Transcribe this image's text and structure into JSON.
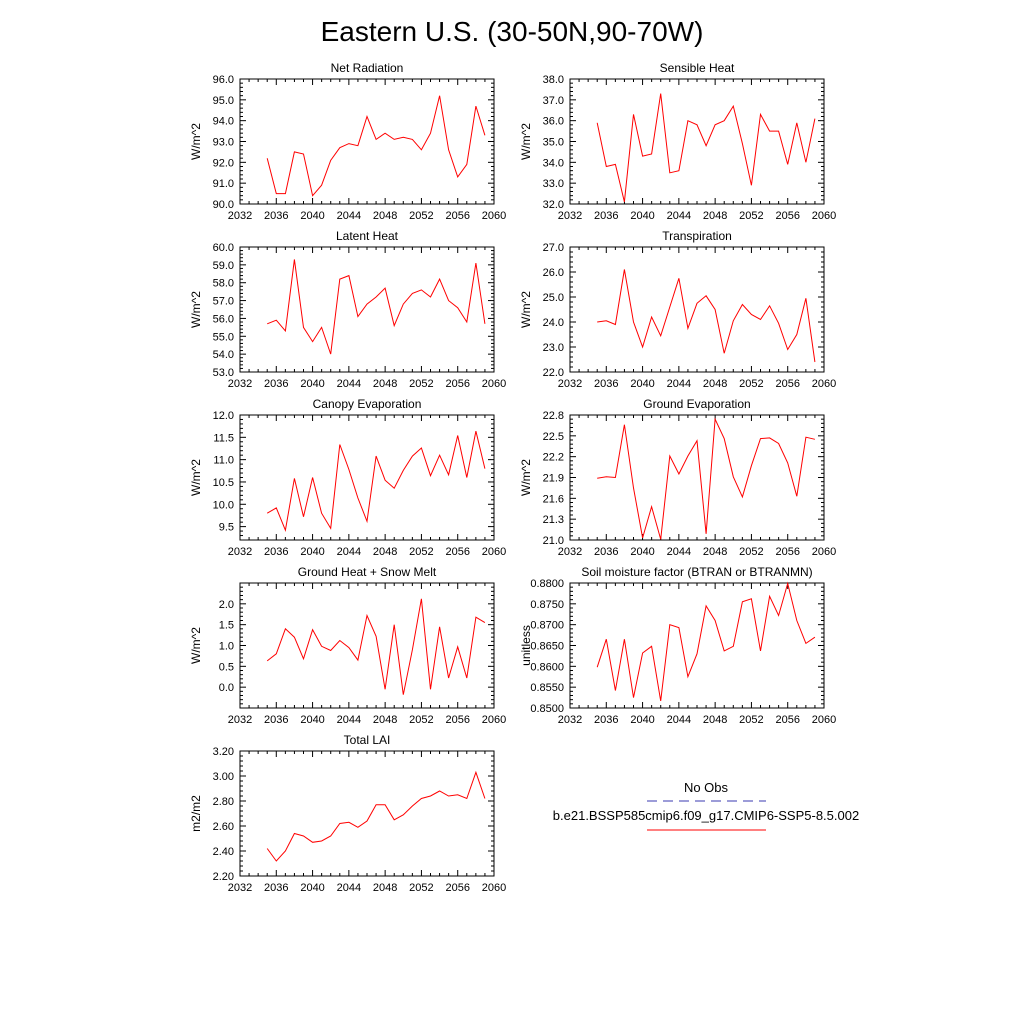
{
  "figure": {
    "title": "Eastern U.S. (30-50N,90-70W)"
  },
  "legend": {
    "obs_label": "No Obs",
    "obs_color": "#3a3ab0",
    "case_label": "b.e21.BSSP585cmip6.f09_g17.CMIP6-SSP5-8.5.002",
    "case_color": "#ff0000"
  },
  "chart_data": [
    {
      "type": "line",
      "title": "Net Radiation",
      "ylabel": "W/m^2",
      "xlim": [
        2032,
        2060
      ],
      "x_ticks": [
        2032,
        2036,
        2040,
        2044,
        2048,
        2052,
        2056,
        2060
      ],
      "ylim": [
        90.0,
        96.0
      ],
      "y_ticks": [
        "90.0",
        "91.0",
        "92.0",
        "93.0",
        "94.0",
        "95.0",
        "96.0"
      ],
      "series": [
        {
          "color": "#ff0000",
          "x": [
            2035,
            2036,
            2037,
            2038,
            2039,
            2040,
            2041,
            2042,
            2043,
            2044,
            2045,
            2046,
            2047,
            2048,
            2049,
            2050,
            2051,
            2052,
            2053,
            2054,
            2055,
            2056,
            2057,
            2058,
            2059
          ],
          "values": [
            92.2,
            90.5,
            90.5,
            92.5,
            92.4,
            90.4,
            90.9,
            92.1,
            92.7,
            92.9,
            92.8,
            94.2,
            93.1,
            93.4,
            93.1,
            93.2,
            93.1,
            92.6,
            93.4,
            95.2,
            92.6,
            91.3,
            91.9,
            94.7,
            93.3
          ]
        }
      ]
    },
    {
      "type": "line",
      "title": "Sensible Heat",
      "ylabel": "W/m^2",
      "xlim": [
        2032,
        2060
      ],
      "x_ticks": [
        2032,
        2036,
        2040,
        2044,
        2048,
        2052,
        2056,
        2060
      ],
      "ylim": [
        32.0,
        38.0
      ],
      "y_ticks": [
        "32.0",
        "33.0",
        "34.0",
        "35.0",
        "36.0",
        "37.0",
        "38.0"
      ],
      "series": [
        {
          "color": "#ff0000",
          "x": [
            2035,
            2036,
            2037,
            2038,
            2039,
            2040,
            2041,
            2042,
            2043,
            2044,
            2045,
            2046,
            2047,
            2048,
            2049,
            2050,
            2051,
            2052,
            2053,
            2054,
            2055,
            2056,
            2057,
            2058,
            2059
          ],
          "values": [
            35.9,
            33.8,
            33.9,
            32.1,
            36.3,
            34.3,
            34.4,
            37.3,
            33.5,
            33.6,
            36.0,
            35.8,
            34.8,
            35.8,
            36.0,
            36.7,
            34.9,
            32.9,
            36.3,
            35.5,
            35.5,
            33.9,
            35.9,
            34.0,
            36.1
          ]
        }
      ]
    },
    {
      "type": "line",
      "title": "Latent Heat",
      "ylabel": "W/m^2",
      "xlim": [
        2032,
        2060
      ],
      "x_ticks": [
        2032,
        2036,
        2040,
        2044,
        2048,
        2052,
        2056,
        2060
      ],
      "ylim": [
        53.0,
        60.0
      ],
      "y_ticks": [
        "53.0",
        "54.0",
        "55.0",
        "56.0",
        "57.0",
        "58.0",
        "59.0",
        "60.0"
      ],
      "series": [
        {
          "color": "#ff0000",
          "x": [
            2035,
            2036,
            2037,
            2038,
            2039,
            2040,
            2041,
            2042,
            2043,
            2044,
            2045,
            2046,
            2047,
            2048,
            2049,
            2050,
            2051,
            2052,
            2053,
            2054,
            2055,
            2056,
            2057,
            2058,
            2059
          ],
          "values": [
            55.7,
            55.9,
            55.3,
            59.3,
            55.5,
            54.7,
            55.5,
            54.0,
            58.2,
            58.4,
            56.1,
            56.8,
            57.2,
            57.7,
            55.6,
            56.8,
            57.4,
            57.6,
            57.2,
            58.2,
            57.0,
            56.6,
            55.8,
            59.1,
            55.7
          ]
        }
      ]
    },
    {
      "type": "line",
      "title": "Transpiration",
      "ylabel": "W/m^2",
      "xlim": [
        2032,
        2060
      ],
      "x_ticks": [
        2032,
        2036,
        2040,
        2044,
        2048,
        2052,
        2056,
        2060
      ],
      "ylim": [
        22.0,
        27.0
      ],
      "y_ticks": [
        "22.0",
        "23.0",
        "24.0",
        "25.0",
        "26.0",
        "27.0"
      ],
      "series": [
        {
          "color": "#ff0000",
          "x": [
            2035,
            2036,
            2037,
            2038,
            2039,
            2040,
            2041,
            2042,
            2043,
            2044,
            2045,
            2046,
            2047,
            2048,
            2049,
            2050,
            2051,
            2052,
            2053,
            2054,
            2055,
            2056,
            2057,
            2058,
            2059
          ],
          "values": [
            24.0,
            24.05,
            23.9,
            26.1,
            24.0,
            23.0,
            24.2,
            23.45,
            24.6,
            25.75,
            23.75,
            24.75,
            25.05,
            24.5,
            22.75,
            24.05,
            24.7,
            24.3,
            24.1,
            24.65,
            23.95,
            22.9,
            23.5,
            24.95,
            22.4
          ]
        }
      ]
    },
    {
      "type": "line",
      "title": "Canopy Evaporation",
      "ylabel": "W/m^2",
      "xlim": [
        2032,
        2060
      ],
      "x_ticks": [
        2032,
        2036,
        2040,
        2044,
        2048,
        2052,
        2056,
        2060
      ],
      "ylim": [
        9.2,
        12.0
      ],
      "y_ticks": [
        "9.5",
        "10.0",
        "10.5",
        "11.0",
        "11.5",
        "12.0"
      ],
      "series": [
        {
          "color": "#ff0000",
          "x": [
            2035,
            2036,
            2037,
            2038,
            2039,
            2040,
            2041,
            2042,
            2043,
            2044,
            2045,
            2046,
            2047,
            2048,
            2049,
            2050,
            2051,
            2052,
            2053,
            2054,
            2055,
            2056,
            2057,
            2058,
            2059
          ],
          "values": [
            9.8,
            9.92,
            9.42,
            10.58,
            9.72,
            10.6,
            9.8,
            9.46,
            11.34,
            10.78,
            10.14,
            9.62,
            11.08,
            10.54,
            10.36,
            10.76,
            11.08,
            11.26,
            10.64,
            11.1,
            10.66,
            11.54,
            10.6,
            11.64,
            10.8
          ]
        }
      ]
    },
    {
      "type": "line",
      "title": "Ground Evaporation",
      "ylabel": "W/m^2",
      "xlim": [
        2032,
        2060
      ],
      "x_ticks": [
        2032,
        2036,
        2040,
        2044,
        2048,
        2052,
        2056,
        2060
      ],
      "ylim": [
        21.0,
        22.8
      ],
      "y_ticks": [
        "21.0",
        "21.3",
        "21.6",
        "21.9",
        "22.2",
        "22.5",
        "22.8"
      ],
      "series": [
        {
          "color": "#ff0000",
          "x": [
            2035,
            2036,
            2037,
            2038,
            2039,
            2040,
            2041,
            2042,
            2043,
            2044,
            2045,
            2046,
            2047,
            2048,
            2049,
            2050,
            2051,
            2052,
            2053,
            2054,
            2055,
            2056,
            2057,
            2058,
            2059
          ],
          "values": [
            21.89,
            21.91,
            21.9,
            22.66,
            21.75,
            21.03,
            21.48,
            21.01,
            22.21,
            21.95,
            22.21,
            22.43,
            21.09,
            22.74,
            22.46,
            21.91,
            21.62,
            22.07,
            22.46,
            22.47,
            22.39,
            22.11,
            21.63,
            22.48,
            22.45
          ]
        }
      ]
    },
    {
      "type": "line",
      "title": "Ground Heat + Snow Melt",
      "ylabel": "W/m^2",
      "xlim": [
        2032,
        2060
      ],
      "x_ticks": [
        2032,
        2036,
        2040,
        2044,
        2048,
        2052,
        2056,
        2060
      ],
      "ylim": [
        -0.5,
        2.5
      ],
      "y_ticks": [
        "0.0",
        "0.5",
        "1.0",
        "1.5",
        "2.0"
      ],
      "series": [
        {
          "color": "#ff0000",
          "x": [
            2035,
            2036,
            2037,
            2038,
            2039,
            2040,
            2041,
            2042,
            2043,
            2044,
            2045,
            2046,
            2047,
            2048,
            2049,
            2050,
            2051,
            2052,
            2053,
            2054,
            2055,
            2056,
            2057,
            2058,
            2059
          ],
          "values": [
            0.63,
            0.8,
            1.4,
            1.2,
            0.68,
            1.38,
            0.98,
            0.88,
            1.12,
            0.95,
            0.65,
            1.72,
            1.22,
            -0.05,
            1.5,
            -0.18,
            0.9,
            2.12,
            -0.05,
            1.45,
            0.22,
            0.97,
            0.22,
            1.68,
            1.55
          ]
        }
      ]
    },
    {
      "type": "line",
      "title": "Soil moisture factor (BTRAN or BTRANMN)",
      "ylabel": "unitless",
      "xlim": [
        2032,
        2060
      ],
      "x_ticks": [
        2032,
        2036,
        2040,
        2044,
        2048,
        2052,
        2056,
        2060
      ],
      "ylim": [
        0.85,
        0.88
      ],
      "y_ticks": [
        "0.8500",
        "0.8550",
        "0.8600",
        "0.8650",
        "0.8700",
        "0.8750",
        "0.8800"
      ],
      "series": [
        {
          "color": "#ff0000",
          "x": [
            2035,
            2036,
            2037,
            2038,
            2039,
            2040,
            2041,
            2042,
            2043,
            2044,
            2045,
            2046,
            2047,
            2048,
            2049,
            2050,
            2051,
            2052,
            2053,
            2054,
            2055,
            2056,
            2057,
            2058,
            2059
          ],
          "values": [
            0.8598,
            0.8665,
            0.8542,
            0.8665,
            0.8525,
            0.8632,
            0.8648,
            0.8517,
            0.87,
            0.8693,
            0.8575,
            0.863,
            0.8745,
            0.871,
            0.8637,
            0.8648,
            0.8755,
            0.8762,
            0.8637,
            0.8768,
            0.8722,
            0.8799,
            0.871,
            0.8655,
            0.867
          ]
        }
      ]
    },
    {
      "type": "line",
      "title": "Total LAI",
      "ylabel": "m2/m2",
      "xlim": [
        2032,
        2060
      ],
      "x_ticks": [
        2032,
        2036,
        2040,
        2044,
        2048,
        2052,
        2056,
        2060
      ],
      "ylim": [
        2.2,
        3.2
      ],
      "y_ticks": [
        "2.20",
        "2.40",
        "2.60",
        "2.80",
        "3.00",
        "3.20"
      ],
      "series": [
        {
          "color": "#ff0000",
          "x": [
            2035,
            2036,
            2037,
            2038,
            2039,
            2040,
            2041,
            2042,
            2043,
            2044,
            2045,
            2046,
            2047,
            2048,
            2049,
            2050,
            2051,
            2052,
            2053,
            2054,
            2055,
            2056,
            2057,
            2058,
            2059
          ],
          "values": [
            2.42,
            2.32,
            2.4,
            2.54,
            2.52,
            2.47,
            2.48,
            2.52,
            2.62,
            2.63,
            2.59,
            2.64,
            2.77,
            2.77,
            2.65,
            2.69,
            2.76,
            2.82,
            2.84,
            2.88,
            2.84,
            2.85,
            2.82,
            3.03,
            2.82
          ]
        }
      ]
    }
  ]
}
